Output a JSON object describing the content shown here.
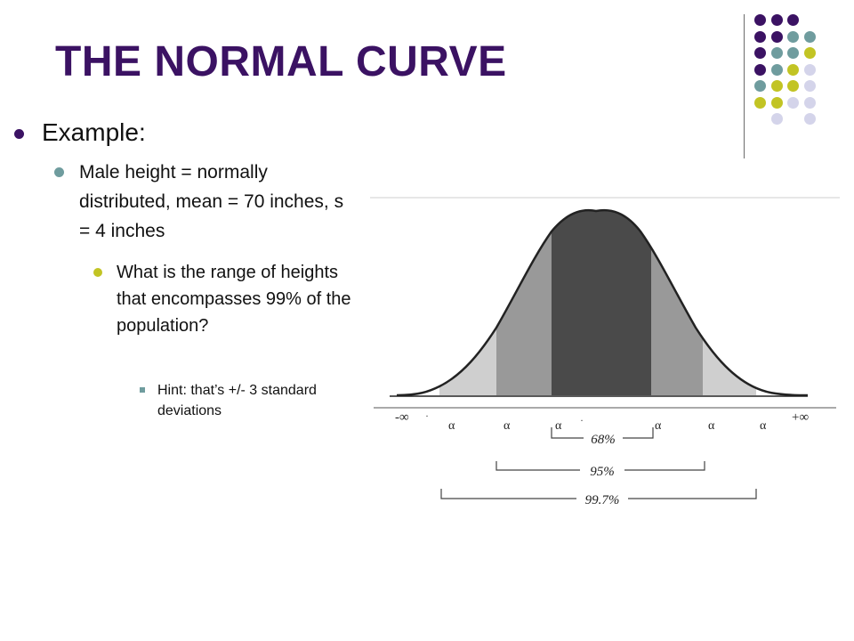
{
  "slide": {
    "title": "THE NORMAL CURVE",
    "bullets": {
      "level1": "Example:",
      "level2": "Male height = normally distributed, mean = 70 inches, s = 4 inches",
      "level3": "What is the range of heights that encompasses 99% of the population?",
      "level4": "Hint:  that’s +/- 3 standard deviations"
    }
  },
  "decoration": {
    "colors": {
      "purple": "#3b1263",
      "teal": "#6f9c9e",
      "yellow": "#c2c424",
      "lavender": "#d4d4ea"
    }
  },
  "figure": {
    "axis_left": "-∞",
    "axis_right": "+∞",
    "sigma_symbol": "α",
    "brackets": [
      "68%",
      "95%",
      "99.7%"
    ],
    "colors": {
      "band_1sd": "#4a4a4a",
      "band_2sd": "#999999",
      "band_3sd": "#cfcfcf",
      "curve_line": "#222222"
    }
  }
}
